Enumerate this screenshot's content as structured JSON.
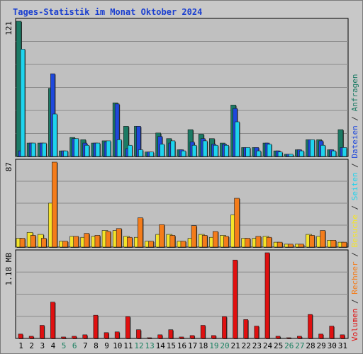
{
  "title": "Tages-Statistik im Monat Oktober 2024",
  "colors": {
    "anfragen": "#1b7a64",
    "dateien": "#1e48dc",
    "seiten": "#1ed4ee",
    "besuche": "#f4e42a",
    "rechner": "#f47c1a",
    "volumen": "#e01010",
    "weekend_label": "#1a8060",
    "weekday_label": "#000000",
    "legend_separator": "#303030"
  },
  "legend": [
    {
      "label": "Anfragen",
      "color": "#1b7a64"
    },
    {
      "label": "Dateien",
      "color": "#1e48dc"
    },
    {
      "label": "Seiten",
      "color": "#1ed4ee"
    },
    {
      "label": "Besuche",
      "color": "#f4e42a"
    },
    {
      "label": "Rechner",
      "color": "#f47c1a"
    },
    {
      "label": "Volumen",
      "color": "#e01010"
    }
  ],
  "legend_separator": "/",
  "chart_data": {
    "type": "bar",
    "categories": [
      "1",
      "2",
      "3",
      "4",
      "5",
      "6",
      "7",
      "8",
      "9",
      "10",
      "11",
      "12",
      "13",
      "14",
      "15",
      "16",
      "17",
      "18",
      "19",
      "20",
      "21",
      "22",
      "23",
      "24",
      "25",
      "26",
      "27",
      "28",
      "29",
      "30",
      "31"
    ],
    "weekend_days": [
      "5",
      "6",
      "12",
      "13",
      "19",
      "20",
      "26",
      "27"
    ],
    "panels": [
      {
        "id": "requests",
        "ymax_label": "121",
        "ylim": [
          0,
          121
        ],
        "series": [
          {
            "name": "Anfragen",
            "color": "#1b7a64",
            "values": [
              121,
              12,
              12,
              61,
              5,
              17,
              15,
              12,
              14,
              48,
              27,
              27,
              4,
              21,
              16,
              6,
              24,
              20,
              16,
              12,
              46,
              8,
              8,
              12,
              5,
              2,
              6,
              15,
              15,
              6,
              24
            ]
          },
          {
            "name": "Dateien",
            "color": "#1e48dc",
            "values": [
              5,
              12,
              12,
              74,
              5,
              16,
              12,
              12,
              13,
              47,
              7,
              27,
              4,
              18,
              12,
              6,
              13,
              16,
              11,
              11,
              43,
              8,
              8,
              12,
              5,
              2,
              6,
              15,
              14,
              6,
              8
            ]
          },
          {
            "name": "Seiten",
            "color": "#1ed4ee",
            "values": [
              96,
              12,
              12,
              38,
              5,
              16,
              10,
              12,
              14,
              15,
              10,
              6,
              4,
              11,
              14,
              5,
              10,
              14,
              10,
              10,
              31,
              8,
              5,
              11,
              4,
              2,
              5,
              15,
              10,
              5,
              8
            ]
          }
        ]
      },
      {
        "id": "visits",
        "ymax_label": "87",
        "ylim": [
          0,
          87
        ],
        "series": [
          {
            "name": "Besuche",
            "color": "#f4e42a",
            "values": [
              9,
              15,
              13,
              45,
              6,
              11,
              10,
              11,
              17,
              17,
              11,
              10,
              6,
              13,
              13,
              6,
              9,
              13,
              10,
              12,
              33,
              9,
              9,
              11,
              5,
              3,
              3,
              13,
              11,
              7,
              5
            ]
          },
          {
            "name": "Rechner",
            "color": "#f47c1a",
            "values": [
              9,
              12,
              9,
              87,
              6,
              11,
              14,
              12,
              16,
              19,
              10,
              30,
              6,
              23,
              12,
              6,
              22,
              12,
              16,
              11,
              50,
              9,
              11,
              10,
              5,
              3,
              3,
              12,
              17,
              7,
              5
            ]
          }
        ]
      },
      {
        "id": "volume",
        "ymax_label": "1.18 MB",
        "ylim": [
          0,
          1.18
        ],
        "series": [
          {
            "name": "Volumen",
            "color": "#e01010",
            "values": [
              0.06,
              0.03,
              0.18,
              0.5,
              0.02,
              0.03,
              0.05,
              0.32,
              0.08,
              0.09,
              0.3,
              0.12,
              0.01,
              0.05,
              0.12,
              0.02,
              0.04,
              0.18,
              0.04,
              0.3,
              1.08,
              0.26,
              0.17,
              1.18,
              0.03,
              0.01,
              0.03,
              0.33,
              0.06,
              0.17,
              0.05
            ]
          }
        ]
      }
    ],
    "grid": true
  }
}
